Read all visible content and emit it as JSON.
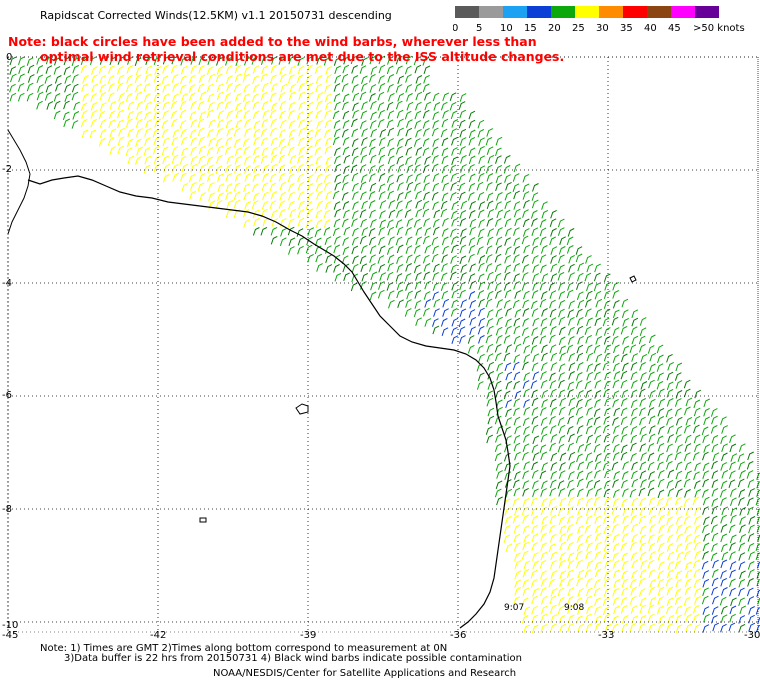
{
  "title": "Rapidscat Corrected Winds(12.5KM) v1.1 20150731 descending",
  "legend": {
    "labels": [
      "0",
      "5",
      "10",
      "15",
      "20",
      "25",
      "30",
      "35",
      "40",
      "45",
      ">50 knots"
    ],
    "colors": [
      "#5a5a5a",
      "#9a9a9a",
      "#1da1f2",
      "#0b3fd6",
      "#0ca80c",
      "#ffff00",
      "#ff8c00",
      "#ff0000",
      "#8b4513",
      "#ff00ff",
      "#660099"
    ]
  },
  "note": {
    "line1": "Note: black circles have been added to the wind barbs, wherever less than",
    "line2": "optimal wind retrieval conditions are met due to the ISS altitude changes."
  },
  "axes": {
    "y_labels": [
      "0",
      "-2",
      "-4",
      "-6",
      "-8",
      "-10"
    ],
    "x_labels": [
      "-45",
      "-42",
      "-39",
      "-36",
      "-33",
      "-30"
    ]
  },
  "time_labels": [
    "9:07",
    "9:08"
  ],
  "footer": {
    "line1": "Note: 1) Times are GMT 2)Times along bottom correspond to measurement at 0N",
    "line2": "3)Data buffer is 22 hrs from 20150731 4) Black wind barbs indicate possible contamination",
    "line3": "NOAA/NESDIS/Center for Satellite Applications and Research"
  }
}
